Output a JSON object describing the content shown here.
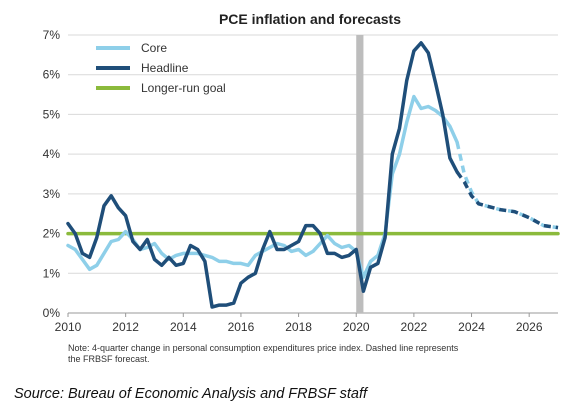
{
  "chart_data": {
    "type": "line",
    "title": "PCE inflation and forecasts",
    "xlabel": "",
    "ylabel": "",
    "xlim": [
      2010,
      2027
    ],
    "ylim": [
      0,
      7
    ],
    "y_ticks": [
      "0%",
      "1%",
      "2%",
      "3%",
      "4%",
      "5%",
      "6%",
      "7%"
    ],
    "x_ticks": [
      "2010",
      "2012",
      "2014",
      "2016",
      "2018",
      "2020",
      "2022",
      "2024",
      "2026"
    ],
    "grid": true,
    "legend_position": "top-left",
    "shaded_period": [
      2020.0,
      2020.25
    ],
    "notes": [
      "Note: 4-quarter change in personal consumption expenditures price index. Dashed line represents",
      "the FRBSF forecast."
    ],
    "source": "Source: Bureau of Economic Analysis and FRBSF staff",
    "colors": {
      "core": "#8ecfe9",
      "headline": "#1f4e79",
      "goal": "#8bba3c",
      "recession": "#bdbdbd",
      "grid": "#d9d9d9"
    },
    "series": [
      {
        "name": "Core",
        "actual": [
          [
            2010.0,
            1.7
          ],
          [
            2010.25,
            1.6
          ],
          [
            2010.5,
            1.35
          ],
          [
            2010.75,
            1.1
          ],
          [
            2011.0,
            1.2
          ],
          [
            2011.25,
            1.5
          ],
          [
            2011.5,
            1.8
          ],
          [
            2011.75,
            1.85
          ],
          [
            2012.0,
            2.05
          ],
          [
            2012.25,
            1.85
          ],
          [
            2012.5,
            1.6
          ],
          [
            2012.75,
            1.65
          ],
          [
            2013.0,
            1.75
          ],
          [
            2013.25,
            1.5
          ],
          [
            2013.5,
            1.35
          ],
          [
            2013.75,
            1.45
          ],
          [
            2014.0,
            1.5
          ],
          [
            2014.25,
            1.5
          ],
          [
            2014.5,
            1.5
          ],
          [
            2014.75,
            1.45
          ],
          [
            2015.0,
            1.4
          ],
          [
            2015.25,
            1.3
          ],
          [
            2015.5,
            1.3
          ],
          [
            2015.75,
            1.25
          ],
          [
            2016.0,
            1.25
          ],
          [
            2016.25,
            1.2
          ],
          [
            2016.5,
            1.45
          ],
          [
            2016.75,
            1.55
          ],
          [
            2017.0,
            1.65
          ],
          [
            2017.25,
            1.75
          ],
          [
            2017.5,
            1.7
          ],
          [
            2017.75,
            1.55
          ],
          [
            2018.0,
            1.6
          ],
          [
            2018.25,
            1.45
          ],
          [
            2018.5,
            1.55
          ],
          [
            2018.75,
            1.75
          ],
          [
            2019.0,
            1.95
          ],
          [
            2019.25,
            1.75
          ],
          [
            2019.5,
            1.65
          ],
          [
            2019.75,
            1.7
          ],
          [
            2020.0,
            1.55
          ],
          [
            2020.25,
            0.9
          ],
          [
            2020.5,
            1.3
          ],
          [
            2020.75,
            1.45
          ],
          [
            2021.0,
            2.0
          ],
          [
            2021.25,
            3.5
          ],
          [
            2021.5,
            4.0
          ],
          [
            2021.75,
            4.8
          ],
          [
            2022.0,
            5.45
          ],
          [
            2022.25,
            5.15
          ],
          [
            2022.5,
            5.2
          ],
          [
            2022.75,
            5.1
          ],
          [
            2023.0,
            4.95
          ],
          [
            2023.25,
            4.7
          ],
          [
            2023.5,
            4.3
          ]
        ],
        "forecast": [
          [
            2023.5,
            4.3
          ],
          [
            2023.75,
            3.5
          ],
          [
            2024.0,
            3.05
          ],
          [
            2024.25,
            2.75
          ],
          [
            2024.5,
            2.7
          ],
          [
            2025.0,
            2.6
          ],
          [
            2025.5,
            2.55
          ],
          [
            2026.0,
            2.4
          ],
          [
            2026.5,
            2.2
          ],
          [
            2027.0,
            2.15
          ]
        ]
      },
      {
        "name": "Headline",
        "actual": [
          [
            2010.0,
            2.25
          ],
          [
            2010.25,
            2.0
          ],
          [
            2010.5,
            1.5
          ],
          [
            2010.75,
            1.4
          ],
          [
            2011.0,
            1.9
          ],
          [
            2011.25,
            2.7
          ],
          [
            2011.5,
            2.95
          ],
          [
            2011.75,
            2.65
          ],
          [
            2012.0,
            2.45
          ],
          [
            2012.25,
            1.8
          ],
          [
            2012.5,
            1.6
          ],
          [
            2012.75,
            1.85
          ],
          [
            2013.0,
            1.35
          ],
          [
            2013.25,
            1.2
          ],
          [
            2013.5,
            1.4
          ],
          [
            2013.75,
            1.2
          ],
          [
            2014.0,
            1.25
          ],
          [
            2014.25,
            1.7
          ],
          [
            2014.5,
            1.6
          ],
          [
            2014.75,
            1.3
          ],
          [
            2015.0,
            0.15
          ],
          [
            2015.25,
            0.2
          ],
          [
            2015.5,
            0.2
          ],
          [
            2015.75,
            0.25
          ],
          [
            2016.0,
            0.75
          ],
          [
            2016.25,
            0.9
          ],
          [
            2016.5,
            1.0
          ],
          [
            2016.75,
            1.6
          ],
          [
            2017.0,
            2.05
          ],
          [
            2017.25,
            1.6
          ],
          [
            2017.5,
            1.6
          ],
          [
            2017.75,
            1.7
          ],
          [
            2018.0,
            1.8
          ],
          [
            2018.25,
            2.2
          ],
          [
            2018.5,
            2.2
          ],
          [
            2018.75,
            2.0
          ],
          [
            2019.0,
            1.5
          ],
          [
            2019.25,
            1.5
          ],
          [
            2019.5,
            1.4
          ],
          [
            2019.75,
            1.45
          ],
          [
            2020.0,
            1.6
          ],
          [
            2020.25,
            0.55
          ],
          [
            2020.5,
            1.15
          ],
          [
            2020.75,
            1.25
          ],
          [
            2021.0,
            1.9
          ],
          [
            2021.25,
            4.0
          ],
          [
            2021.5,
            4.65
          ],
          [
            2021.75,
            5.85
          ],
          [
            2022.0,
            6.6
          ],
          [
            2022.25,
            6.8
          ],
          [
            2022.5,
            6.55
          ],
          [
            2022.75,
            5.8
          ],
          [
            2023.0,
            5.0
          ],
          [
            2023.25,
            3.9
          ],
          [
            2023.5,
            3.55
          ]
        ],
        "forecast": [
          [
            2023.5,
            3.55
          ],
          [
            2023.75,
            3.3
          ],
          [
            2024.0,
            2.95
          ],
          [
            2024.25,
            2.75
          ],
          [
            2024.5,
            2.7
          ],
          [
            2025.0,
            2.6
          ],
          [
            2025.5,
            2.55
          ],
          [
            2026.0,
            2.4
          ],
          [
            2026.5,
            2.2
          ],
          [
            2027.0,
            2.15
          ]
        ]
      },
      {
        "name": "Longer-run goal",
        "actual": [
          [
            2010.0,
            2.0
          ],
          [
            2027.0,
            2.0
          ]
        ],
        "forecast": []
      }
    ]
  }
}
